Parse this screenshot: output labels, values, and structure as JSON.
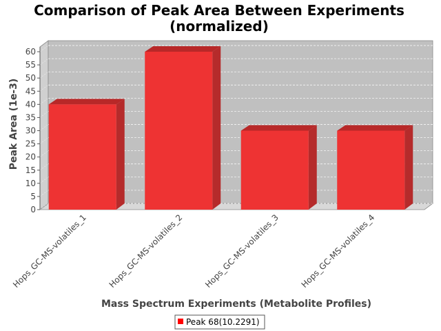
{
  "chart_data": {
    "type": "bar",
    "title_line1": "Comparison of Peak Area Between Experiments",
    "title_line2": "(normalized)",
    "xlabel": "Mass Spectrum Experiments (Metabolite Profiles)",
    "ylabel": "Peak Area (1e-3)",
    "categories": [
      "Hops_GC-MS-volatiles_1",
      "Hops_GC-MS-volatiles_2",
      "Hops_GC-MS-volatiles_3",
      "Hops_GC-MS-volatiles_4"
    ],
    "series": [
      {
        "name": "Peak 68(10.2291)",
        "values": [
          40,
          60,
          30,
          30
        ]
      }
    ],
    "ylim": [
      0,
      60
    ],
    "yticks": [
      0,
      5,
      10,
      15,
      20,
      25,
      30,
      35,
      40,
      45,
      50,
      55,
      60
    ],
    "grid": true,
    "legend_position": "bottom",
    "colors": {
      "bar_front": "#ee3333",
      "bar_top": "#b82828",
      "bar_side": "#b52b2b",
      "plot_back": "#c0c0c0",
      "plot_floor": "#d8d8d8",
      "gridline": "#ffffff",
      "legend_swatch": "#ff0000"
    }
  }
}
